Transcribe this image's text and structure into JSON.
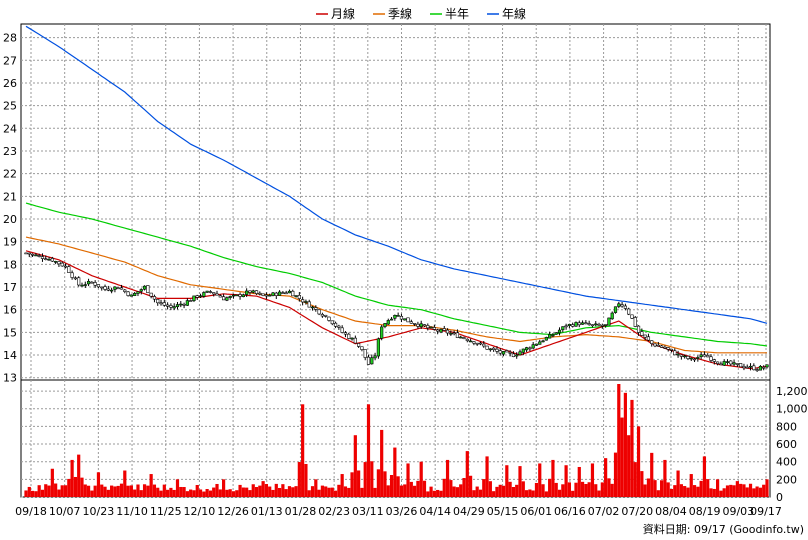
{
  "legend": [
    {
      "name": "月線",
      "color": "#cc0000"
    },
    {
      "name": "季線",
      "color": "#e06a00"
    },
    {
      "name": "半年",
      "color": "#00cc00"
    },
    {
      "name": "年線",
      "color": "#0050e0"
    }
  ],
  "footer": "資料日期: 09/17  (Goodinfo.tw)",
  "chart_data": {
    "type": "candlestick+line+bar",
    "price_axis": {
      "range": [
        12.9,
        28.6
      ],
      "ticks": [
        13,
        14,
        15,
        16,
        17,
        18,
        19,
        20,
        21,
        22,
        23,
        24,
        25,
        26,
        27,
        28
      ],
      "grid": true
    },
    "volume_axis": {
      "range": [
        0,
        1280
      ],
      "ticks": [
        "0",
        "200",
        "400",
        "600",
        "800",
        "1,000",
        "1,200"
      ],
      "tick_values": [
        0,
        200,
        400,
        600,
        800,
        1000,
        1200
      ],
      "grid": true
    },
    "x_tick_labels": [
      "09/18",
      "10/07",
      "10/23",
      "11/10",
      "11/25",
      "12/10",
      "12/26",
      "01/13",
      "01/28",
      "02/23",
      "03/11",
      "03/26",
      "04/14",
      "04/29",
      "05/15",
      "06/01",
      "06/16",
      "07/02",
      "07/20",
      "08/04",
      "08/19",
      "09/03",
      "09/17"
    ],
    "ma_lines": [
      {
        "name": "年線",
        "color": "#0050e0",
        "points": [
          [
            0,
            28.5
          ],
          [
            10,
            27.6
          ],
          [
            20,
            26.6
          ],
          [
            30,
            25.6
          ],
          [
            40,
            24.3
          ],
          [
            50,
            23.3
          ],
          [
            60,
            22.6
          ],
          [
            70,
            21.8
          ],
          [
            80,
            21.0
          ],
          [
            90,
            20.0
          ],
          [
            100,
            19.3
          ],
          [
            110,
            18.8
          ],
          [
            120,
            18.2
          ],
          [
            130,
            17.8
          ],
          [
            140,
            17.5
          ],
          [
            150,
            17.2
          ],
          [
            160,
            16.9
          ],
          [
            170,
            16.6
          ],
          [
            180,
            16.4
          ],
          [
            190,
            16.2
          ],
          [
            200,
            16.0
          ],
          [
            210,
            15.8
          ],
          [
            220,
            15.6
          ],
          [
            225,
            15.4
          ]
        ]
      },
      {
        "name": "半年",
        "color": "#00cc00",
        "points": [
          [
            0,
            20.7
          ],
          [
            10,
            20.3
          ],
          [
            20,
            20.0
          ],
          [
            30,
            19.6
          ],
          [
            40,
            19.2
          ],
          [
            50,
            18.8
          ],
          [
            60,
            18.3
          ],
          [
            70,
            17.9
          ],
          [
            80,
            17.6
          ],
          [
            90,
            17.2
          ],
          [
            100,
            16.6
          ],
          [
            110,
            16.2
          ],
          [
            120,
            16.0
          ],
          [
            130,
            15.6
          ],
          [
            140,
            15.3
          ],
          [
            150,
            15.0
          ],
          [
            160,
            14.9
          ],
          [
            170,
            15.2
          ],
          [
            180,
            15.3
          ],
          [
            190,
            15.0
          ],
          [
            200,
            14.8
          ],
          [
            210,
            14.6
          ],
          [
            220,
            14.5
          ],
          [
            225,
            14.4
          ]
        ]
      },
      {
        "name": "季線",
        "color": "#e06a00",
        "points": [
          [
            0,
            19.2
          ],
          [
            10,
            18.9
          ],
          [
            20,
            18.5
          ],
          [
            30,
            18.1
          ],
          [
            40,
            17.5
          ],
          [
            50,
            17.1
          ],
          [
            60,
            16.9
          ],
          [
            70,
            16.7
          ],
          [
            80,
            16.6
          ],
          [
            90,
            16.0
          ],
          [
            100,
            15.5
          ],
          [
            110,
            15.3
          ],
          [
            120,
            15.3
          ],
          [
            130,
            15.1
          ],
          [
            140,
            14.8
          ],
          [
            150,
            14.6
          ],
          [
            160,
            14.8
          ],
          [
            170,
            14.9
          ],
          [
            180,
            14.8
          ],
          [
            190,
            14.6
          ],
          [
            200,
            14.2
          ],
          [
            210,
            14.1
          ],
          [
            220,
            14.1
          ],
          [
            225,
            14.1
          ]
        ]
      },
      {
        "name": "月線",
        "color": "#cc0000",
        "points": [
          [
            0,
            18.6
          ],
          [
            10,
            18.2
          ],
          [
            20,
            17.5
          ],
          [
            30,
            17.0
          ],
          [
            40,
            16.5
          ],
          [
            50,
            16.5
          ],
          [
            60,
            16.7
          ],
          [
            70,
            16.6
          ],
          [
            80,
            16.1
          ],
          [
            90,
            15.2
          ],
          [
            100,
            14.5
          ],
          [
            110,
            14.8
          ],
          [
            120,
            15.2
          ],
          [
            130,
            15.0
          ],
          [
            140,
            14.5
          ],
          [
            150,
            14.0
          ],
          [
            160,
            14.5
          ],
          [
            170,
            15.0
          ],
          [
            180,
            15.5
          ],
          [
            190,
            14.5
          ],
          [
            200,
            14.0
          ],
          [
            210,
            13.6
          ],
          [
            220,
            13.4
          ],
          [
            225,
            13.5
          ]
        ]
      }
    ],
    "candle_close_path": [
      [
        0,
        18.5
      ],
      [
        8,
        18.2
      ],
      [
        12,
        17.9
      ],
      [
        16,
        17.1
      ],
      [
        20,
        17.2
      ],
      [
        24,
        16.9
      ],
      [
        28,
        17.0
      ],
      [
        32,
        16.6
      ],
      [
        36,
        17.0
      ],
      [
        40,
        16.3
      ],
      [
        44,
        16.1
      ],
      [
        48,
        16.3
      ],
      [
        52,
        16.6
      ],
      [
        56,
        16.8
      ],
      [
        60,
        16.5
      ],
      [
        64,
        16.6
      ],
      [
        68,
        16.8
      ],
      [
        72,
        16.6
      ],
      [
        76,
        16.7
      ],
      [
        80,
        16.8
      ],
      [
        84,
        16.4
      ],
      [
        88,
        16.0
      ],
      [
        92,
        15.6
      ],
      [
        96,
        15.0
      ],
      [
        100,
        14.6
      ],
      [
        102,
        14.2
      ],
      [
        104,
        13.6
      ],
      [
        106,
        14.0
      ],
      [
        108,
        15.3
      ],
      [
        112,
        15.8
      ],
      [
        116,
        15.5
      ],
      [
        120,
        15.3
      ],
      [
        124,
        15.1
      ],
      [
        128,
        15.0
      ],
      [
        132,
        14.8
      ],
      [
        136,
        14.6
      ],
      [
        140,
        14.3
      ],
      [
        144,
        14.1
      ],
      [
        148,
        14.0
      ],
      [
        152,
        14.3
      ],
      [
        156,
        14.6
      ],
      [
        160,
        14.9
      ],
      [
        164,
        15.3
      ],
      [
        168,
        15.4
      ],
      [
        172,
        15.3
      ],
      [
        176,
        15.3
      ],
      [
        180,
        16.3
      ],
      [
        182,
        16.1
      ],
      [
        184,
        15.6
      ],
      [
        186,
        15.0
      ],
      [
        190,
        14.5
      ],
      [
        194,
        14.3
      ],
      [
        198,
        14.0
      ],
      [
        202,
        13.8
      ],
      [
        206,
        14.0
      ],
      [
        210,
        13.7
      ],
      [
        214,
        13.6
      ],
      [
        218,
        13.5
      ],
      [
        222,
        13.4
      ],
      [
        225,
        13.5
      ]
    ],
    "volume_spikes": [
      [
        8,
        320
      ],
      [
        14,
        420
      ],
      [
        16,
        480
      ],
      [
        22,
        280
      ],
      [
        30,
        300
      ],
      [
        38,
        260
      ],
      [
        46,
        200
      ],
      [
        60,
        200
      ],
      [
        72,
        180
      ],
      [
        84,
        1050
      ],
      [
        88,
        200
      ],
      [
        96,
        260
      ],
      [
        100,
        700
      ],
      [
        104,
        1050
      ],
      [
        108,
        760
      ],
      [
        112,
        560
      ],
      [
        116,
        380
      ],
      [
        120,
        400
      ],
      [
        128,
        420
      ],
      [
        134,
        520
      ],
      [
        140,
        460
      ],
      [
        146,
        360
      ],
      [
        150,
        350
      ],
      [
        156,
        380
      ],
      [
        160,
        420
      ],
      [
        164,
        360
      ],
      [
        168,
        340
      ],
      [
        172,
        380
      ],
      [
        176,
        440
      ],
      [
        180,
        1280
      ],
      [
        181,
        900
      ],
      [
        182,
        1180
      ],
      [
        183,
        700
      ],
      [
        184,
        1100
      ],
      [
        186,
        800
      ],
      [
        190,
        500
      ],
      [
        194,
        420
      ],
      [
        198,
        300
      ],
      [
        202,
        260
      ],
      [
        206,
        460
      ],
      [
        210,
        200
      ],
      [
        216,
        180
      ],
      [
        220,
        150
      ],
      [
        225,
        200
      ]
    ]
  }
}
